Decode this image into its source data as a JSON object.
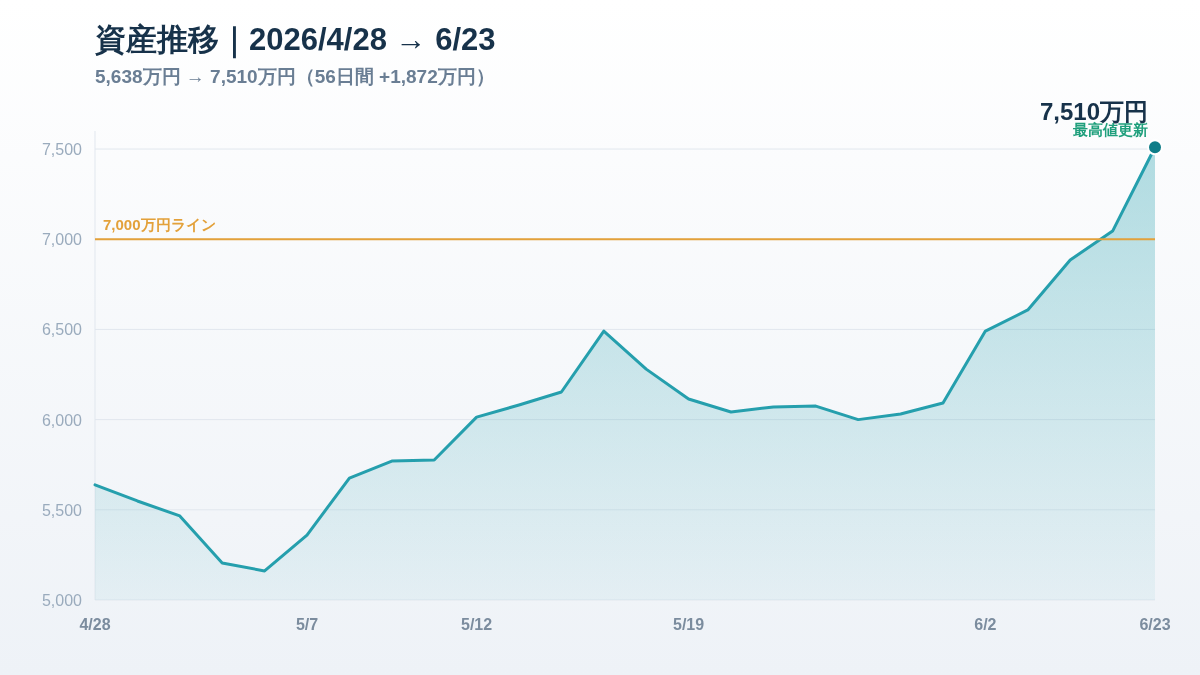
{
  "chart_data": {
    "type": "area",
    "title": "資産推移｜2026/4/28 → 6/23",
    "subtitle": "5,638万円 → 7,510万円（56日間 +1,872万円）",
    "categories": [
      "4/28",
      null,
      null,
      null,
      null,
      "5/7",
      null,
      null,
      null,
      "5/12",
      null,
      null,
      null,
      null,
      "5/19",
      null,
      null,
      null,
      null,
      null,
      null,
      "6/2",
      null,
      null,
      null,
      "6/23"
    ],
    "series": [
      {
        "color": "#259fad",
        "values": [
          5638,
          5549,
          5466,
          5205,
          5161,
          5360,
          5676,
          5770,
          5776,
          6014,
          6081,
          6153,
          6491,
          6280,
          6114,
          6042,
          6070,
          6075,
          6000,
          6031,
          6092,
          6491,
          6608,
          6885,
          7045,
          7510
        ]
      }
    ],
    "ylim": [
      5000,
      7600
    ],
    "yticks": [
      {
        "value": 5000,
        "label": "5,000"
      },
      {
        "value": 5500,
        "label": "5,500"
      },
      {
        "value": 6000,
        "label": "6,000"
      },
      {
        "value": 6500,
        "label": "6,500"
      },
      {
        "value": 7000,
        "label": "7,000"
      },
      {
        "value": 7500,
        "label": "7,500"
      }
    ],
    "grid": "y",
    "ref_lines": [
      {
        "axis": "y",
        "value": 7000,
        "label": "7,000万円ライン",
        "color": "#e3a13a"
      }
    ],
    "annotations": [
      {
        "text": "7,510万円",
        "x": "6/23",
        "y": 7510
      },
      {
        "text": "最高値更新",
        "x": "6/23",
        "y": 7510
      }
    ]
  }
}
